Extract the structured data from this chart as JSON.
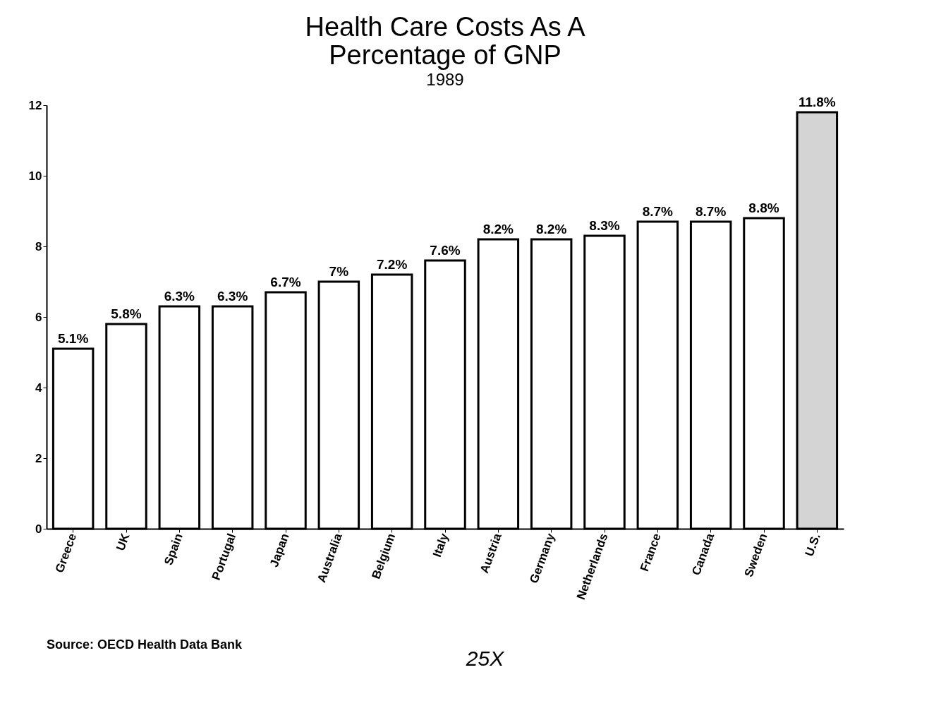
{
  "chart_data": {
    "type": "bar",
    "title": [
      "Health Care Costs As A",
      "Percentage of GNP"
    ],
    "subtitle": "1989",
    "categories": [
      "Greece",
      "UK",
      "Spain",
      "Portugal",
      "Japan",
      "Australia",
      "Belgium",
      "Italy",
      "Austria",
      "Germany",
      "Netherlands",
      "France",
      "Canada",
      "Sweden",
      "U.S."
    ],
    "values": [
      5.1,
      5.8,
      6.3,
      6.3,
      6.7,
      7,
      7.2,
      7.6,
      8.2,
      8.2,
      8.3,
      8.7,
      8.7,
      8.8,
      11.8
    ],
    "value_labels": [
      "5.1%",
      "5.8%",
      "6.3%",
      "6.3%",
      "6.7%",
      "7%",
      "7.2%",
      "7.6%",
      "8.2%",
      "8.2%",
      "8.3%",
      "8.7%",
      "8.7%",
      "8.8%",
      "11.8%"
    ],
    "colors": [
      "#ffffff",
      "#ffffff",
      "#ffffff",
      "#ffffff",
      "#ffffff",
      "#ffffff",
      "#ffffff",
      "#ffffff",
      "#ffffff",
      "#ffffff",
      "#ffffff",
      "#ffffff",
      "#ffffff",
      "#ffffff",
      "#d4d4d4"
    ],
    "ylim": [
      0,
      12
    ],
    "yticks": [
      0,
      2,
      4,
      6,
      8,
      10,
      12
    ],
    "grid": false,
    "legend": false,
    "annotations": [
      "Source: OECD Health Data Bank",
      "25X"
    ]
  }
}
